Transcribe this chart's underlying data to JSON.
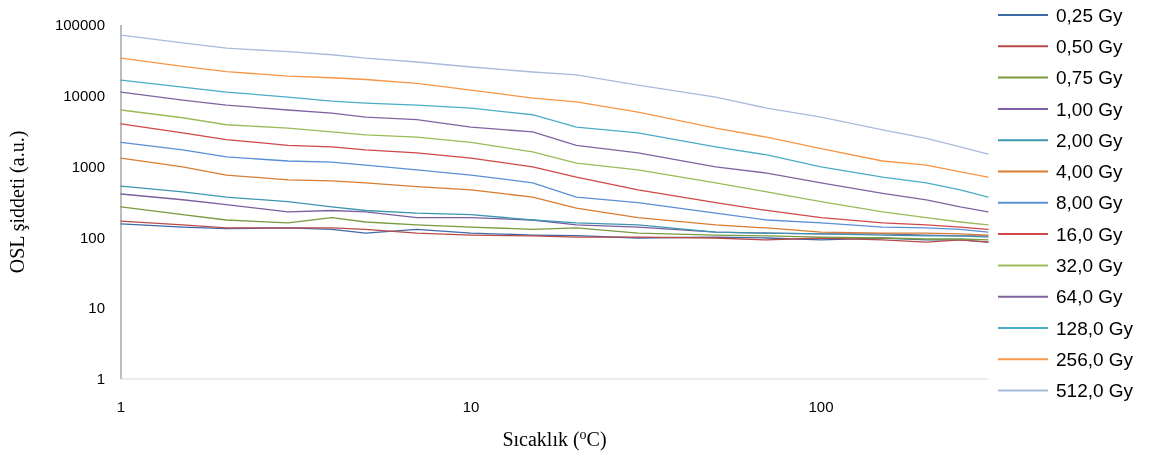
{
  "chart_data": {
    "type": "line",
    "xlabel": "Sıcaklık ($^{o}$C)",
    "ylabel": "OSL şiddeti (a.u.)",
    "log": "xy",
    "xlim": [
      1,
      300
    ],
    "xticks": [
      1,
      10,
      100
    ],
    "ylim": [
      1,
      100000
    ],
    "yticks": [
      1,
      10,
      100,
      1000,
      10000,
      100000
    ],
    "grid": false,
    "legend": "right",
    "line_style": "solid",
    "marker": "none",
    "x": [
      1,
      1.5,
      2,
      3,
      4,
      5,
      7,
      10,
      15,
      20,
      30,
      50,
      70,
      100,
      150,
      200,
      250,
      300
    ],
    "series": [
      {
        "name": "0,25 Gy",
        "color": "#3f6aa8",
        "values": [
          155,
          140,
          133,
          136,
          130,
          115,
          130,
          115,
          108,
          106,
          98,
          101,
          98,
          92,
          98,
          92,
          92,
          86
        ]
      },
      {
        "name": "0,50 Gy",
        "color": "#b94a48",
        "values": [
          170,
          150,
          136,
          136,
          136,
          130,
          115,
          108,
          105,
          101,
          101,
          98,
          92,
          98,
          92,
          86,
          92,
          86
        ]
      },
      {
        "name": "0,75 Gy",
        "color": "#7a9a3f",
        "values": [
          270,
          210,
          176,
          160,
          190,
          165,
          150,
          140,
          130,
          136,
          115,
          108,
          105,
          101,
          98,
          95,
          95,
          92
        ]
      },
      {
        "name": "1,00 Gy",
        "color": "#7b5fa0",
        "values": [
          410,
          340,
          290,
          230,
          240,
          230,
          190,
          190,
          176,
          150,
          140,
          119,
          115,
          112,
          112,
          108,
          105,
          105
        ]
      },
      {
        "name": "2,00 Gy",
        "color": "#3d96b0",
        "values": [
          530,
          440,
          370,
          320,
          270,
          240,
          220,
          210,
          176,
          160,
          150,
          119,
          115,
          112,
          108,
          105,
          105,
          101
        ]
      },
      {
        "name": "4,00 Gy",
        "color": "#d87d32",
        "values": [
          1320,
          990,
          760,
          650,
          630,
          590,
          520,
          470,
          370,
          260,
          190,
          150,
          136,
          119,
          115,
          115,
          112,
          108
        ]
      },
      {
        "name": "8,00 Gy",
        "color": "#5b8fd6",
        "values": [
          2200,
          1720,
          1370,
          1200,
          1160,
          1050,
          900,
          760,
          590,
          370,
          310,
          220,
          176,
          160,
          140,
          136,
          130,
          119
        ]
      },
      {
        "name": "16,0 Gy",
        "color": "#d04848",
        "values": [
          4000,
          3000,
          2400,
          2000,
          1900,
          1720,
          1560,
          1320,
          990,
          710,
          470,
          310,
          240,
          190,
          160,
          150,
          140,
          130
        ]
      },
      {
        "name": "32,0 Gy",
        "color": "#9bbb59",
        "values": [
          6300,
          4900,
          3900,
          3500,
          3100,
          2800,
          2600,
          2200,
          1610,
          1120,
          900,
          590,
          440,
          320,
          230,
          190,
          165,
          150
        ]
      },
      {
        "name": "64,0 Gy",
        "color": "#8064a2",
        "values": [
          11300,
          8700,
          7400,
          6300,
          5700,
          5000,
          4600,
          3600,
          3100,
          2000,
          1560,
          990,
          810,
          590,
          420,
          340,
          270,
          230
        ]
      },
      {
        "name": "128,0 Gy",
        "color": "#4bacc6",
        "values": [
          16700,
          13300,
          11300,
          9600,
          8400,
          7900,
          7400,
          6700,
          5400,
          3600,
          3000,
          1900,
          1460,
          990,
          710,
          590,
          470,
          370
        ]
      },
      {
        "name": "256,0 Gy",
        "color": "#f79646",
        "values": [
          34000,
          26000,
          22000,
          19000,
          18000,
          17000,
          15000,
          12000,
          9300,
          8200,
          5900,
          3500,
          2600,
          1800,
          1200,
          1050,
          840,
          710
        ]
      },
      {
        "name": "512,0 Gy",
        "color": "#a9bcdc",
        "values": [
          72000,
          56000,
          47000,
          42000,
          38000,
          34000,
          30000,
          25500,
          21700,
          19700,
          14200,
          9600,
          6700,
          5000,
          3300,
          2500,
          1900,
          1500
        ]
      }
    ]
  }
}
